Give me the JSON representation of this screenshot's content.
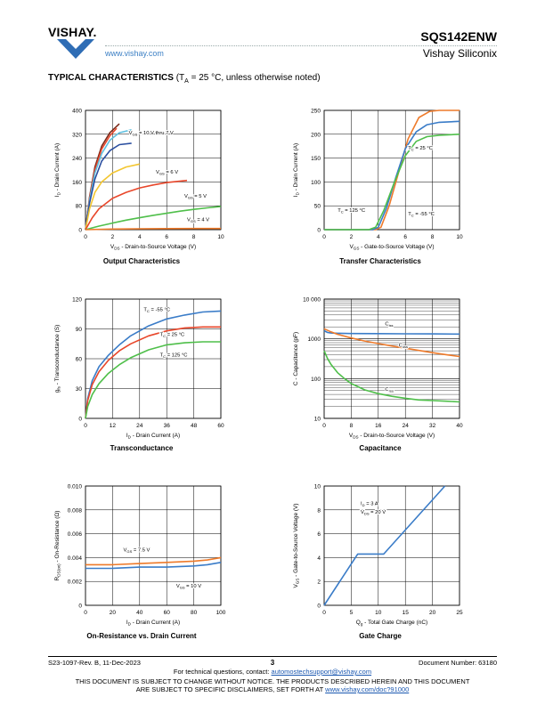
{
  "header": {
    "logo_text": "VISHAY.",
    "url": "www.vishay.com",
    "part_number": "SQS142ENW",
    "company": "Vishay Siliconix"
  },
  "section": {
    "title_bold": "TYPICAL CHARACTERISTICS",
    "title_rest": " (T",
    "title_sub": "A",
    "title_tail": " = 25 °C, unless otherwise noted)"
  },
  "colors": {
    "red": "#e8462a",
    "orange": "#ee7a2a",
    "blue": "#3a7cc8",
    "lightblue": "#5fc0e0",
    "green": "#4fbf4a",
    "yellow": "#f3c630",
    "darkred": "#7a2a1a",
    "navy": "#2b4fa0"
  },
  "chart_data": [
    {
      "type": "line",
      "title": "Output Characteristics",
      "xlabel": "V_DS - Drain-to-Source Voltage (V)",
      "ylabel": "I_D - Drain Current (A)",
      "xlim": [
        0,
        10
      ],
      "ylim": [
        0,
        400
      ],
      "xticks": [
        "0",
        "2",
        "4",
        "6",
        "8",
        "10"
      ],
      "yticks": [
        "0",
        "80",
        "160",
        "240",
        "320",
        "400"
      ],
      "annotations": [
        "V_GS = 10 V thru 7 V",
        "V_GS = 6 V",
        "V_GS = 5 V",
        "V_GS = 4 V"
      ],
      "series": [
        {
          "name": "V_GS = 10 V",
          "color": "darkred",
          "x": [
            0,
            0.3,
            0.7,
            1.2,
            1.8,
            2.5
          ],
          "y": [
            0,
            110,
            210,
            280,
            325,
            355
          ]
        },
        {
          "name": "V_GS = 9 V",
          "color": "red",
          "x": [
            0,
            0.3,
            0.7,
            1.2,
            1.8,
            2.3
          ],
          "y": [
            0,
            105,
            200,
            270,
            315,
            340
          ]
        },
        {
          "name": "V_GS = 8 V",
          "color": "lightblue",
          "x": [
            0,
            0.3,
            0.7,
            1.2,
            1.8,
            2.5,
            3.4
          ],
          "y": [
            0,
            100,
            190,
            255,
            300,
            325,
            335
          ]
        },
        {
          "name": "V_GS = 7 V",
          "color": "navy",
          "x": [
            0,
            0.3,
            0.7,
            1.2,
            1.8,
            2.5,
            3.4
          ],
          "y": [
            0,
            90,
            170,
            230,
            265,
            285,
            290
          ]
        },
        {
          "name": "V_GS = 6 V",
          "color": "yellow",
          "x": [
            0,
            0.3,
            0.7,
            1.2,
            2.0,
            3.0,
            4.0
          ],
          "y": [
            0,
            70,
            125,
            160,
            190,
            210,
            220
          ]
        },
        {
          "name": "V_GS = 5 V",
          "color": "red",
          "x": [
            0,
            0.5,
            1.0,
            2.0,
            3.0,
            4.0,
            5.0,
            6.0,
            7.5
          ],
          "y": [
            0,
            40,
            70,
            105,
            125,
            140,
            150,
            158,
            165
          ]
        },
        {
          "name": "V_GS = 4 V",
          "color": "green",
          "x": [
            0,
            1,
            2,
            3,
            4,
            5,
            6,
            7,
            8,
            9,
            10
          ],
          "y": [
            0,
            12,
            22,
            32,
            40,
            48,
            55,
            62,
            68,
            73,
            78
          ]
        },
        {
          "name": "V_GS = 3 V",
          "color": "orange",
          "x": [
            0,
            2,
            4,
            6,
            8,
            10
          ],
          "y": [
            0,
            2,
            3,
            3.5,
            4,
            4
          ]
        }
      ]
    },
    {
      "type": "line",
      "title": "Transfer Characteristics",
      "xlabel": "V_GS - Gate-to-Source Voltage (V)",
      "ylabel": "I_D - Drain Current (A)",
      "xlim": [
        0,
        10
      ],
      "ylim": [
        0,
        250
      ],
      "xticks": [
        "0",
        "2",
        "4",
        "6",
        "8",
        "10"
      ],
      "yticks": [
        "0",
        "50",
        "100",
        "150",
        "200",
        "250"
      ],
      "annotations": [
        "T_C = 25 °C",
        "T_C = 125 °C",
        "T_C = -55 °C"
      ],
      "series": [
        {
          "name": "T_C = -55 °C",
          "color": "orange",
          "x": [
            0,
            3.8,
            4.2,
            4.8,
            5.5,
            6.2,
            7.0,
            7.8,
            8.5,
            10
          ],
          "y": [
            0,
            0,
            5,
            50,
            120,
            190,
            235,
            248,
            250,
            250
          ]
        },
        {
          "name": "T_C = 25 °C",
          "color": "blue",
          "x": [
            0,
            3.6,
            4.0,
            4.6,
            5.3,
            6.0,
            6.8,
            7.6,
            8.5,
            10
          ],
          "y": [
            0,
            0,
            5,
            45,
            110,
            170,
            205,
            220,
            225,
            227
          ]
        },
        {
          "name": "T_C = 125 °C",
          "color": "green",
          "x": [
            0,
            3.3,
            3.8,
            4.4,
            5.2,
            6.0,
            6.8,
            7.6,
            8.5,
            10
          ],
          "y": [
            0,
            0,
            5,
            40,
            100,
            155,
            185,
            195,
            198,
            200
          ]
        }
      ]
    },
    {
      "type": "line",
      "title": "Transconductance",
      "xlabel": "I_D - Drain Current (A)",
      "ylabel": "g_fs - Transconductance (S)",
      "xlim": [
        0,
        60
      ],
      "ylim": [
        0,
        120
      ],
      "xticks": [
        "0",
        "12",
        "24",
        "36",
        "48",
        "60"
      ],
      "yticks": [
        "0",
        "30",
        "60",
        "90",
        "120"
      ],
      "annotations": [
        "T_C = -55 °C",
        "T_C = 25 °C",
        "T_C = 125 °C"
      ],
      "series": [
        {
          "name": "T_C = -55 °C",
          "color": "blue",
          "x": [
            0,
            1,
            3,
            6,
            10,
            15,
            20,
            28,
            36,
            44,
            52,
            60
          ],
          "y": [
            0,
            20,
            38,
            52,
            63,
            74,
            83,
            93,
            100,
            104,
            107,
            108
          ]
        },
        {
          "name": "T_C = 25 °C",
          "color": "red",
          "x": [
            0,
            1,
            3,
            6,
            10,
            15,
            20,
            28,
            36,
            44,
            52,
            60
          ],
          "y": [
            0,
            18,
            34,
            47,
            58,
            68,
            75,
            83,
            88,
            91,
            92,
            92
          ]
        },
        {
          "name": "T_C = 125 °C",
          "color": "green",
          "x": [
            0,
            1,
            3,
            6,
            10,
            15,
            20,
            28,
            36,
            44,
            52,
            60
          ],
          "y": [
            0,
            12,
            24,
            35,
            45,
            54,
            61,
            69,
            74,
            76,
            77,
            77
          ]
        }
      ]
    },
    {
      "type": "line",
      "title": "Capacitance",
      "xlabel": "V_DS - Drain-to-Source Voltage (V)",
      "ylabel": "C - Capacitance (pF)",
      "xlim": [
        0,
        40
      ],
      "ylim": [
        10,
        10000
      ],
      "yscale": "log",
      "xticks": [
        "0",
        "8",
        "16",
        "24",
        "32",
        "40"
      ],
      "yticks": [
        "10",
        "100",
        "1000",
        "10 000"
      ],
      "annotations": [
        "C_iss",
        "C_oss",
        "C_rss"
      ],
      "series": [
        {
          "name": "C_iss",
          "color": "blue",
          "x": [
            0,
            1,
            2,
            4,
            8,
            16,
            24,
            32,
            40
          ],
          "y": [
            1600,
            1450,
            1400,
            1380,
            1360,
            1350,
            1340,
            1330,
            1320
          ]
        },
        {
          "name": "C_oss",
          "color": "orange",
          "x": [
            0,
            2,
            4,
            8,
            12,
            16,
            20,
            24,
            28,
            32,
            36,
            40
          ],
          "y": [
            1800,
            1500,
            1300,
            1050,
            880,
            760,
            660,
            580,
            510,
            450,
            400,
            360
          ]
        },
        {
          "name": "C_rss",
          "color": "green",
          "x": [
            0,
            1,
            2,
            4,
            6,
            8,
            12,
            16,
            20,
            24,
            28,
            32,
            36,
            40
          ],
          "y": [
            500,
            320,
            230,
            140,
            100,
            75,
            52,
            42,
            36,
            32,
            29,
            28,
            27,
            26
          ]
        }
      ]
    },
    {
      "type": "line",
      "title": "On-Resistance vs. Drain Current",
      "xlabel": "I_D - Drain Current (A)",
      "ylabel": "R_DS(on) - On-Resistance (Ω)",
      "xlim": [
        0,
        100
      ],
      "ylim": [
        0,
        0.01
      ],
      "xticks": [
        "0",
        "20",
        "40",
        "60",
        "80",
        "100"
      ],
      "yticks": [
        "0",
        "0.002",
        "0.004",
        "0.006",
        "0.008",
        "0.010"
      ],
      "annotations": [
        "V_GS = 7.5 V",
        "V_GS = 10 V"
      ],
      "series": [
        {
          "name": "V_GS = 7.5 V",
          "color": "orange",
          "x": [
            0,
            20,
            40,
            60,
            80,
            90,
            100
          ],
          "y": [
            0.0034,
            0.0034,
            0.0035,
            0.0036,
            0.0037,
            0.0038,
            0.004
          ]
        },
        {
          "name": "V_GS = 10 V",
          "color": "blue",
          "x": [
            0,
            20,
            40,
            60,
            80,
            90,
            100
          ],
          "y": [
            0.0031,
            0.0031,
            0.0032,
            0.0032,
            0.0033,
            0.0034,
            0.0036
          ]
        }
      ]
    },
    {
      "type": "line",
      "title": "Gate Charge",
      "xlabel": "Q_g - Total Gate Charge (nC)",
      "ylabel": "V_GS - Gate-to-Source Voltage (V)",
      "xlim": [
        0,
        25
      ],
      "ylim": [
        0,
        10
      ],
      "xticks": [
        "0",
        "5",
        "10",
        "15",
        "20",
        "25"
      ],
      "yticks": [
        "0",
        "2",
        "4",
        "6",
        "8",
        "10"
      ],
      "annotations": [
        "I_D = 3 A",
        "V_DS = 20 V"
      ],
      "series": [
        {
          "name": "V_GS",
          "color": "blue",
          "x": [
            0,
            6.2,
            11,
            22.3
          ],
          "y": [
            0,
            4.3,
            4.3,
            10
          ]
        }
      ]
    }
  ],
  "captions": [
    "Output Characteristics",
    "Transfer Characteristics",
    "Transconductance",
    "Capacitance",
    "On-Resistance vs. Drain Current",
    "Gate Charge"
  ],
  "footer": {
    "doc_rev": "S23-1097-Rev. B, 11-Dec-2023",
    "page": "3",
    "doc_number": "Document Number: 63180",
    "tech_q": "For technical questions, contact: ",
    "tech_email": "automostechsupport@vishay.com",
    "disclaimer1": "THIS DOCUMENT IS SUBJECT TO CHANGE WITHOUT NOTICE. THE PRODUCTS DESCRIBED HEREIN AND THIS DOCUMENT",
    "disclaimer2": "ARE SUBJECT TO SPECIFIC DISCLAIMERS, SET FORTH AT ",
    "disclaimer_link": "www.vishay.com/doc?91000"
  }
}
